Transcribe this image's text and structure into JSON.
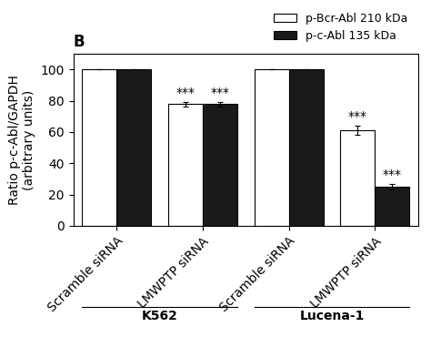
{
  "chart_data": {
    "type": "bar",
    "title": "B",
    "categories": [
      "Scramble siRNA",
      "LMWPTP siRNA",
      "Scramble siRNA",
      "LMWPTP siRNA"
    ],
    "groups": [
      "K562",
      "Lucena-1"
    ],
    "series": [
      {
        "name": "p-Bcr-Abl 210 kDa",
        "color": "white",
        "values": [
          100,
          78,
          100,
          61
        ],
        "errors": [
          0,
          1.5,
          0,
          3.0
        ]
      },
      {
        "name": "p-c-Abl 135 kDa",
        "color": "#1a1a1a",
        "values": [
          100,
          78,
          100,
          25
        ],
        "errors": [
          0,
          1.5,
          0,
          2.0
        ]
      }
    ],
    "ylabel": "Ratio p-c-Abl/GAPDH\n(arbitrary units)",
    "ylim": [
      0,
      110
    ],
    "yticks": [
      0,
      20,
      40,
      60,
      80,
      100
    ],
    "legend": "upper right",
    "annotations": [
      {
        "text": "***",
        "category": 1,
        "series": 0
      },
      {
        "text": "***",
        "category": 1,
        "series": 1
      },
      {
        "text": "***",
        "category": 3,
        "series": 0
      },
      {
        "text": "***",
        "category": 3,
        "series": 1
      }
    ]
  }
}
